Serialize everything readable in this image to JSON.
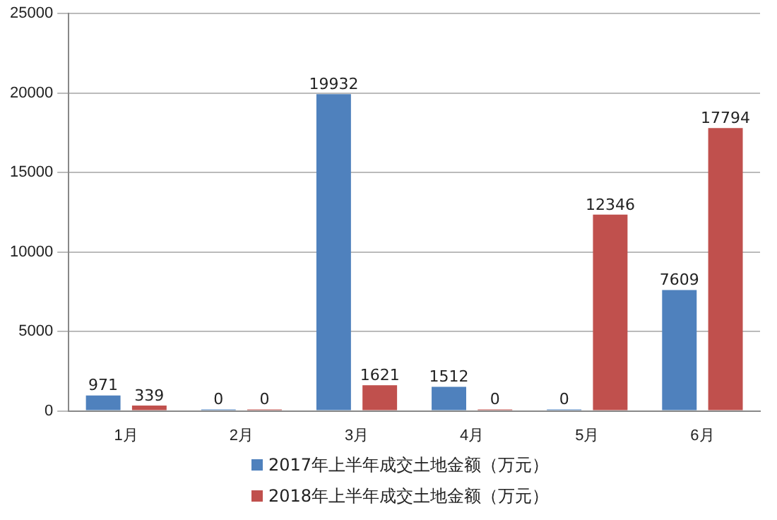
{
  "chart_data": {
    "type": "bar",
    "categories": [
      "1月",
      "2月",
      "3月",
      "4月",
      "5月",
      "6月"
    ],
    "series": [
      {
        "name": "2017年上半年成交土地金额（万元）",
        "color": "#4f81bd",
        "values": [
          971,
          0,
          19932,
          1512,
          0,
          7609
        ]
      },
      {
        "name": "2018年上半年成交土地金额（万元）",
        "color": "#c0504d",
        "values": [
          339,
          0,
          1621,
          0,
          12346,
          17794
        ]
      }
    ],
    "ylim": [
      0,
      25000
    ],
    "yticks": [
      0,
      5000,
      10000,
      15000,
      20000,
      25000
    ],
    "grid": "y",
    "legend": "bottom",
    "data_labels": true
  }
}
